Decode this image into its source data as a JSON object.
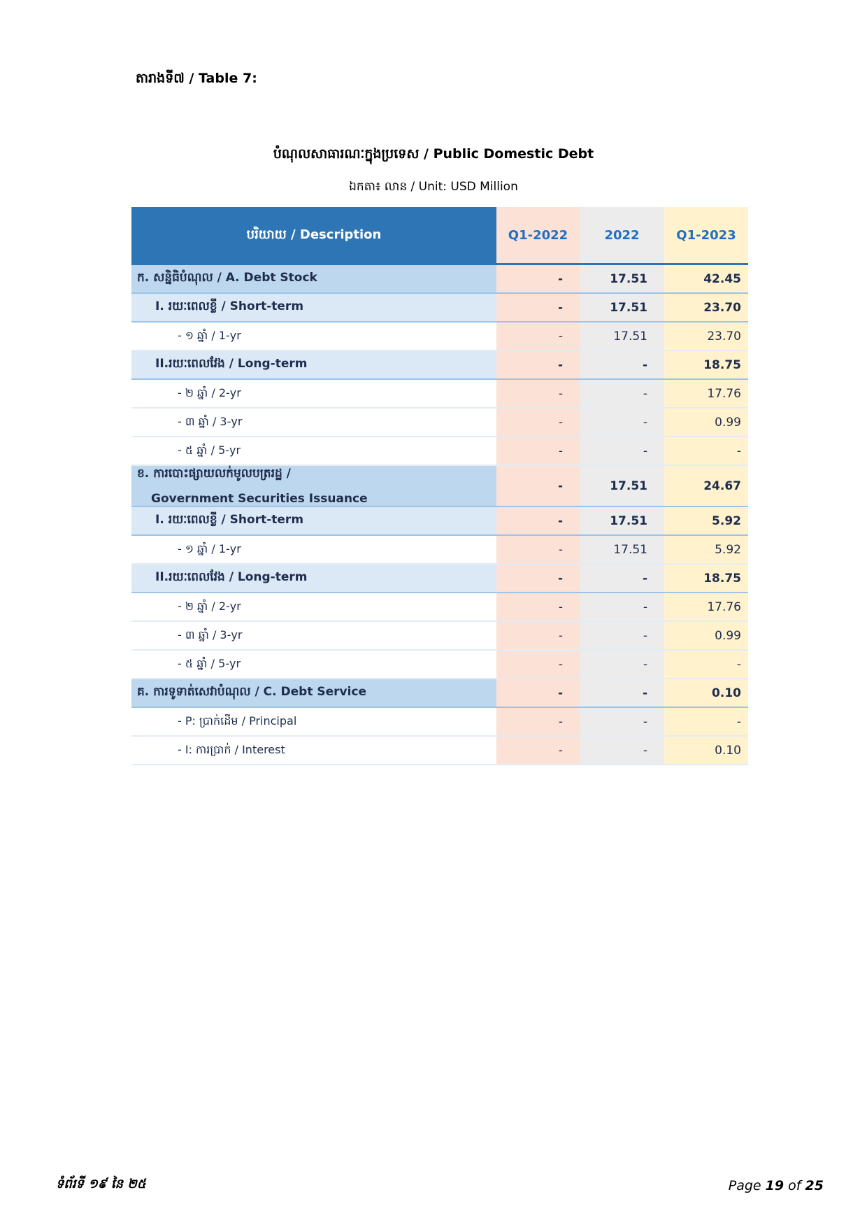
{
  "header": {
    "title": "តារាងទី៧ / Table 7:"
  },
  "table": {
    "title": "បំណុលសាធារណៈក្នុងប្រទេស / Public Domestic Debt",
    "unit": "ឯកតា៖ លាន / Unit: USD Million",
    "columns": [
      "បរិយាយ / Description",
      "Q1-2022",
      "2022",
      "Q1-2023"
    ],
    "sections": [
      {
        "label": [
          "ក. សន្និធិបំណុល / A. Debt Stock"
        ],
        "values": [
          "-",
          "17.51",
          "42.45"
        ],
        "groups": [
          {
            "label": "I. រយៈពេលខ្លី / Short-term",
            "values": [
              "-",
              "17.51",
              "23.70"
            ],
            "items": [
              {
                "label": "- ១ ឆ្នាំ / 1-yr",
                "values": [
                  "-",
                  "17.51",
                  "23.70"
                ]
              }
            ]
          },
          {
            "label": "II.រយៈពេលវែង / Long-term",
            "values": [
              "-",
              "-",
              "18.75"
            ],
            "items": [
              {
                "label": "- ២ ឆ្នាំ / 2-yr",
                "values": [
                  "-",
                  "-",
                  "17.76"
                ]
              },
              {
                "label": "- ៣ ឆ្នាំ / 3-yr",
                "values": [
                  "-",
                  "-",
                  "0.99"
                ]
              },
              {
                "label": "- ៥ ឆ្នាំ / 5-yr",
                "values": [
                  "-",
                  "-",
                  "-"
                ]
              }
            ]
          }
        ]
      },
      {
        "label": [
          "ខ. ការបោះផ្សាយលក់មូលបត្ររដ្ឋ  /",
          "Government Securities Issuance"
        ],
        "values": [
          "-",
          "17.51",
          "24.67"
        ],
        "groups": [
          {
            "label": "I. រយៈពេលខ្លី / Short-term",
            "values": [
              "-",
              "17.51",
              "5.92"
            ],
            "items": [
              {
                "label": "- ១ ឆ្នាំ / 1-yr",
                "values": [
                  "-",
                  "17.51",
                  "5.92"
                ]
              }
            ]
          },
          {
            "label": "II.រយៈពេលវែង / Long-term",
            "values": [
              "-",
              "-",
              "18.75"
            ],
            "items": [
              {
                "label": "- ២ ឆ្នាំ / 2-yr",
                "values": [
                  "-",
                  "-",
                  "17.76"
                ]
              },
              {
                "label": "- ៣ ឆ្នាំ / 3-yr",
                "values": [
                  "-",
                  "-",
                  "0.99"
                ]
              },
              {
                "label": "- ៥ ឆ្នាំ / 5-yr",
                "values": [
                  "-",
                  "-",
                  "-"
                ]
              }
            ]
          }
        ]
      },
      {
        "label": [
          "គ. ការទូទាត់សេវាបំណុល / C. Debt Service"
        ],
        "values": [
          "-",
          "-",
          "0.10"
        ],
        "items": [
          {
            "label": "- P: ប្រាក់ដើម / Principal",
            "values": [
              "-",
              "-",
              "-"
            ]
          },
          {
            "label": "- I: ការប្រាក់ / Interest",
            "values": [
              "-",
              "-",
              "0.10"
            ]
          }
        ]
      }
    ]
  },
  "footer": {
    "left": "ទំព័រទី ១៩ នៃ ២៥",
    "page_word": "Page",
    "page": "19",
    "of_word": "of",
    "total": "25"
  }
}
